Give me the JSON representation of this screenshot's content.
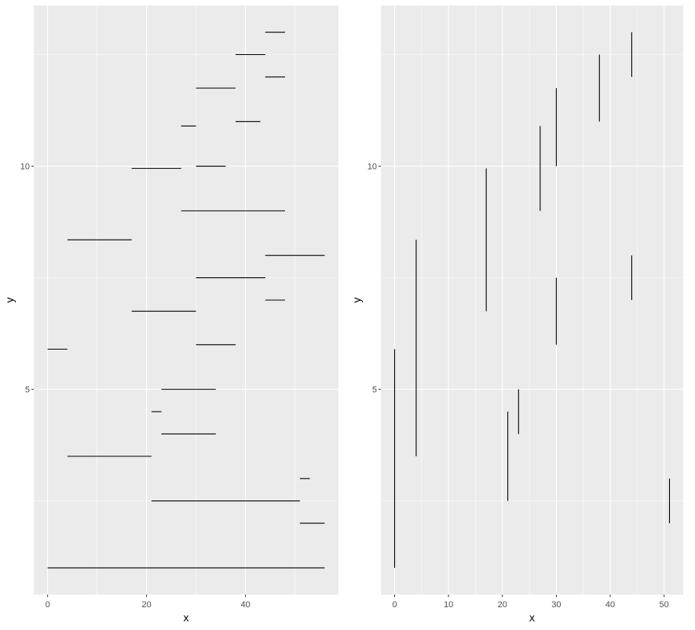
{
  "chart_data": [
    {
      "type": "segment",
      "xlabel": "x",
      "ylabel": "y",
      "x": [
        44,
        38,
        44,
        30,
        38,
        27,
        30,
        17,
        27,
        4,
        44,
        30,
        44,
        17,
        30,
        0,
        23,
        21,
        23,
        4,
        51,
        21,
        51,
        0
      ],
      "xend": [
        48,
        44,
        48,
        38,
        43,
        30,
        36,
        27,
        48,
        17,
        56,
        44,
        48,
        30,
        38,
        4,
        34,
        23,
        34,
        21,
        53,
        51,
        56,
        56
      ],
      "y": [
        13,
        12.5,
        12,
        11.75,
        11,
        10.9,
        10,
        9.95,
        9,
        8.35,
        8,
        7.5,
        7,
        6.75,
        6,
        5.9,
        5,
        4.5,
        4,
        3.5,
        3,
        2.5,
        2,
        1
      ],
      "yend": [
        13,
        12.5,
        12,
        11.75,
        11,
        10.9,
        10,
        9.95,
        9,
        8.35,
        8,
        7.5,
        7,
        6.75,
        6,
        5.9,
        5,
        4.5,
        4,
        3.5,
        3,
        2.5,
        2,
        1
      ],
      "color": "#000000",
      "xlim": [
        -2.8,
        58.8
      ],
      "xticks": [
        0,
        20,
        40
      ],
      "ylim": [
        0.4,
        13.6
      ],
      "yticks": [
        5,
        10
      ],
      "grid": true
    },
    {
      "type": "segment",
      "xlabel": "x",
      "ylabel": "y",
      "x": [
        0,
        4,
        17,
        21,
        23,
        27,
        30,
        30,
        38,
        44,
        44,
        51
      ],
      "xend": [
        0,
        4,
        17,
        21,
        23,
        27,
        30,
        30,
        38,
        44,
        44,
        51
      ],
      "y": [
        1,
        3.5,
        6.75,
        2.5,
        4,
        9,
        10,
        6,
        11,
        12,
        7,
        2
      ],
      "yend": [
        5.9,
        8.35,
        9.95,
        4.5,
        5,
        10.9,
        11.75,
        7.5,
        12.5,
        13,
        8,
        3
      ],
      "color": "#000000",
      "xlim": [
        -2.55,
        53.55
      ],
      "xticks": [
        0,
        10,
        20,
        30,
        40,
        50
      ],
      "ylim": [
        0.4,
        13.6
      ],
      "yticks": [
        5,
        10
      ],
      "grid": true
    }
  ]
}
